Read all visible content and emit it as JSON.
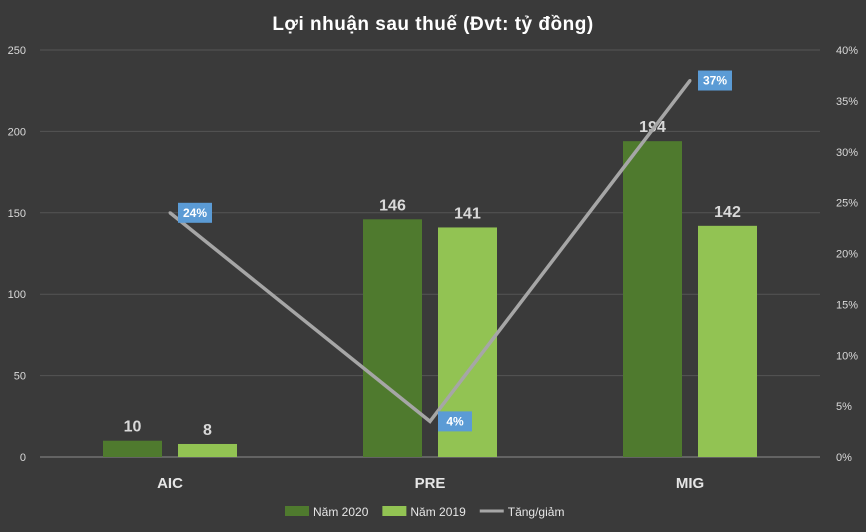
{
  "chart_data": {
    "type": "bar",
    "title": "Lợi nhuận sau thuế (Đvt: tỷ đồng)",
    "categories": [
      "AIC",
      "PRE",
      "MIG"
    ],
    "series": [
      {
        "name": "Năm 2020",
        "kind": "bar",
        "axis": "left",
        "color": "#4f7a2e",
        "values": [
          10,
          146,
          194
        ],
        "labels": [
          "10",
          "146",
          "194"
        ]
      },
      {
        "name": "Năm 2019",
        "kind": "bar",
        "axis": "left",
        "color": "#92c353",
        "values": [
          8,
          141,
          142
        ],
        "labels": [
          "8",
          "141",
          "142"
        ]
      },
      {
        "name": "Tăng/giảm",
        "kind": "line",
        "axis": "right",
        "color": "#a6a6a6",
        "values": [
          24,
          3.5,
          37
        ],
        "labels": [
          "24%",
          "4%",
          "37%"
        ],
        "label_bg": "#5b9bd5"
      }
    ],
    "y_left": {
      "min": 0,
      "max": 250,
      "ticks": [
        "0",
        "50",
        "100",
        "150",
        "200",
        "250"
      ]
    },
    "y_right": {
      "min": 0,
      "max": 40,
      "ticks": [
        "0%",
        "5%",
        "10%",
        "15%",
        "20%",
        "25%",
        "30%",
        "35%",
        "40%"
      ]
    },
    "grid": true,
    "legend_position": "bottom"
  }
}
